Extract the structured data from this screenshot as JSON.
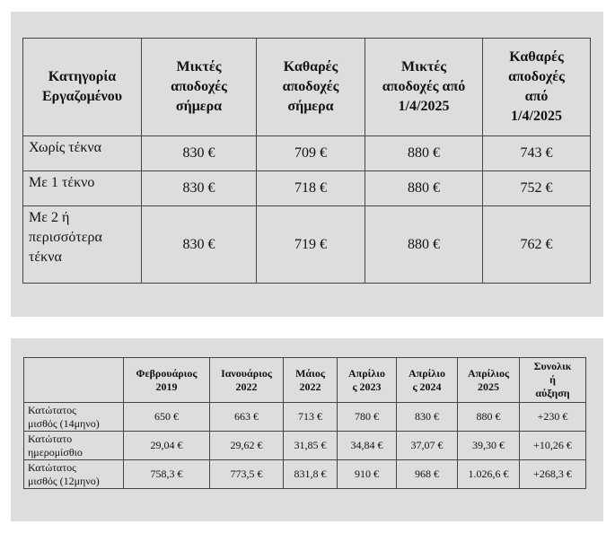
{
  "table1": {
    "headers": [
      "Κατηγορία\nΕργαζομένου",
      "Μικτές\nαποδοχές\nσήμερα",
      "Καθαρές\nαποδοχές\nσήμερα",
      "Μικτές\nαποδοχές από\n1/4/2025",
      "Καθαρές\nαποδοχές\nαπό\n1/4/2025"
    ],
    "rows": [
      [
        "Χωρίς τέκνα",
        "830 €",
        "709 €",
        "880 €",
        "743 €"
      ],
      [
        "Με 1 τέκνο",
        "830 €",
        "718 €",
        "880 €",
        "752 €"
      ],
      [
        "Με 2 ή\nπερισσότερα\nτέκνα",
        "830 €",
        "719 €",
        "880 €",
        "762 €"
      ]
    ]
  },
  "table2": {
    "headers": [
      "",
      "Φεβρουάριος\n2019",
      "Ιανουάριος\n2022",
      "Μάιος\n2022",
      "Απρίλιο\nς 2023",
      "Απρίλιο\nς 2024",
      "Απρίλιος\n2025",
      "Συνολικ\nή\nαύξηση"
    ],
    "rows": [
      [
        "Κατώτατος\nμισθός (14μηνο)",
        "650 €",
        "663 €",
        "713 €",
        "780 €",
        "830 €",
        "880 €",
        "+230 €"
      ],
      [
        "Κατώτατο\nημερομίσθιο",
        "29,04 €",
        "29,62 €",
        "31,85 €",
        "34,84 €",
        "37,07 €",
        "39,30 €",
        "+10,26 €"
      ],
      [
        "Κατώτατος\nμισθός (12μηνο)",
        "758,3 €",
        "773,5 €",
        "831,8 €",
        "910 €",
        "968 €",
        "1.026,6 €",
        "+268,3 €"
      ]
    ]
  }
}
